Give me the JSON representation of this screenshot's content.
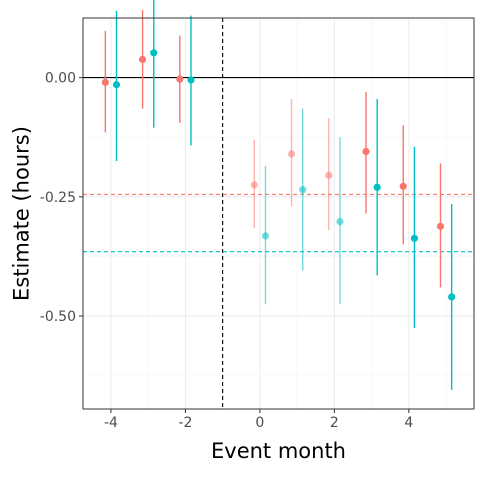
{
  "chart_data": {
    "type": "scatter",
    "title": "",
    "xlabel": "Event month",
    "ylabel": "Estimate (hours)",
    "xlim": [
      -4.75,
      5.75
    ],
    "ylim": [
      -0.695,
      0.125
    ],
    "x_ticks": [
      -4,
      -2,
      0,
      2,
      4
    ],
    "x_tick_labels": [
      "-4",
      "-2",
      "0",
      "2",
      "4"
    ],
    "y_ticks": [
      0.0,
      -0.25,
      -0.5
    ],
    "y_tick_labels": [
      "0.00",
      "-0.25",
      "-0.50"
    ],
    "grid": true,
    "legend": "none",
    "event_line_x": -1,
    "zero_line_y": 0,
    "series": [
      {
        "color": "#F8766D",
        "average_line": -0.245,
        "points": [
          {
            "x": -4,
            "y": -0.01,
            "lower": -0.115,
            "upper": 0.098,
            "faded": false
          },
          {
            "x": -3,
            "y": 0.038,
            "lower": -0.065,
            "upper": 0.142,
            "faded": false
          },
          {
            "x": -2,
            "y": -0.003,
            "lower": -0.095,
            "upper": 0.088,
            "faded": false
          },
          {
            "x": 0,
            "y": -0.225,
            "lower": -0.315,
            "upper": -0.13,
            "faded": true
          },
          {
            "x": 1,
            "y": -0.16,
            "lower": -0.27,
            "upper": -0.045,
            "faded": true
          },
          {
            "x": 2,
            "y": -0.205,
            "lower": -0.32,
            "upper": -0.085,
            "faded": true
          },
          {
            "x": 3,
            "y": -0.155,
            "lower": -0.285,
            "upper": -0.03,
            "faded": false
          },
          {
            "x": 4,
            "y": -0.228,
            "lower": -0.35,
            "upper": -0.1,
            "faded": false
          },
          {
            "x": 5,
            "y": -0.312,
            "lower": -0.44,
            "upper": -0.18,
            "faded": false
          }
        ]
      },
      {
        "color": "#00BFC4",
        "average_line": -0.365,
        "points": [
          {
            "x": -4,
            "y": -0.015,
            "lower": -0.175,
            "upper": 0.14,
            "faded": false
          },
          {
            "x": -3,
            "y": 0.052,
            "lower": -0.105,
            "upper": 0.205,
            "faded": false
          },
          {
            "x": -2,
            "y": -0.005,
            "lower": -0.142,
            "upper": 0.13,
            "faded": false
          },
          {
            "x": 0,
            "y": -0.332,
            "lower": -0.475,
            "upper": -0.185,
            "faded": true
          },
          {
            "x": 1,
            "y": -0.235,
            "lower": -0.405,
            "upper": -0.065,
            "faded": true
          },
          {
            "x": 2,
            "y": -0.302,
            "lower": -0.475,
            "upper": -0.125,
            "faded": true
          },
          {
            "x": 3,
            "y": -0.23,
            "lower": -0.415,
            "upper": -0.045,
            "faded": false
          },
          {
            "x": 4,
            "y": -0.337,
            "lower": -0.525,
            "upper": -0.145,
            "faded": false
          },
          {
            "x": 5,
            "y": -0.46,
            "lower": -0.655,
            "upper": -0.265,
            "faded": false
          }
        ]
      }
    ]
  }
}
